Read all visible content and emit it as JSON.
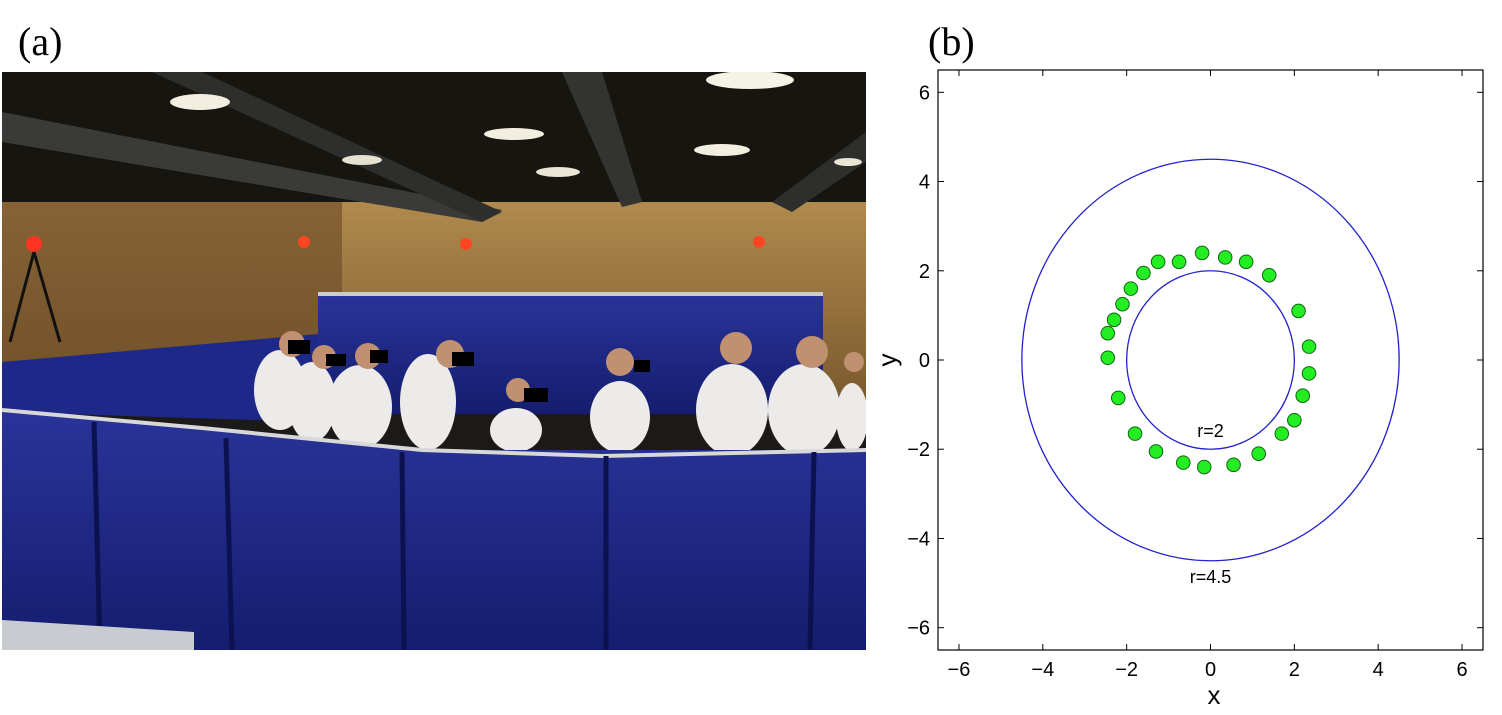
{
  "panels": {
    "a_label": "(a)",
    "b_label": "(b)"
  },
  "photo": {
    "wall_color": "#1e2a8c",
    "ceiling_color": "#15130f"
  },
  "chart_data": {
    "type": "scatter",
    "xlabel": "x",
    "ylabel": "y",
    "xlim": [
      -6.5,
      6.5
    ],
    "ylim": [
      -6.5,
      6.5
    ],
    "xticks": [
      -6,
      -4,
      -2,
      0,
      2,
      4,
      6
    ],
    "yticks": [
      -6,
      -4,
      -2,
      0,
      2,
      4,
      6
    ],
    "xtick_labels": [
      "−6",
      "−4",
      "−2",
      "0",
      "2",
      "4",
      "6"
    ],
    "ytick_labels": [
      "−6",
      "−4",
      "−2",
      "0",
      "2",
      "4",
      "6"
    ],
    "grid": false,
    "circles": [
      {
        "radius": 2,
        "label": "r=2",
        "color": "#2222cc"
      },
      {
        "radius": 4.5,
        "label": "r=4.5",
        "color": "#2222cc"
      }
    ],
    "series": [
      {
        "marker_color": "#22ee22",
        "points": [
          [
            -0.2,
            2.4
          ],
          [
            0.35,
            2.3
          ],
          [
            0.85,
            2.2
          ],
          [
            1.4,
            1.9
          ],
          [
            2.1,
            1.1
          ],
          [
            2.35,
            0.3
          ],
          [
            2.35,
            -0.3
          ],
          [
            2.2,
            -0.8
          ],
          [
            2.0,
            -1.35
          ],
          [
            1.7,
            -1.65
          ],
          [
            1.15,
            -2.1
          ],
          [
            0.55,
            -2.35
          ],
          [
            -0.15,
            -2.4
          ],
          [
            -0.65,
            -2.3
          ],
          [
            -1.3,
            -2.05
          ],
          [
            -1.8,
            -1.65
          ],
          [
            -2.2,
            -0.85
          ],
          [
            -2.45,
            0.05
          ],
          [
            -2.45,
            0.6
          ],
          [
            -2.3,
            0.9
          ],
          [
            -2.1,
            1.25
          ],
          [
            -1.9,
            1.6
          ],
          [
            -1.6,
            1.95
          ],
          [
            -1.25,
            2.2
          ],
          [
            -0.75,
            2.2
          ]
        ]
      }
    ]
  }
}
